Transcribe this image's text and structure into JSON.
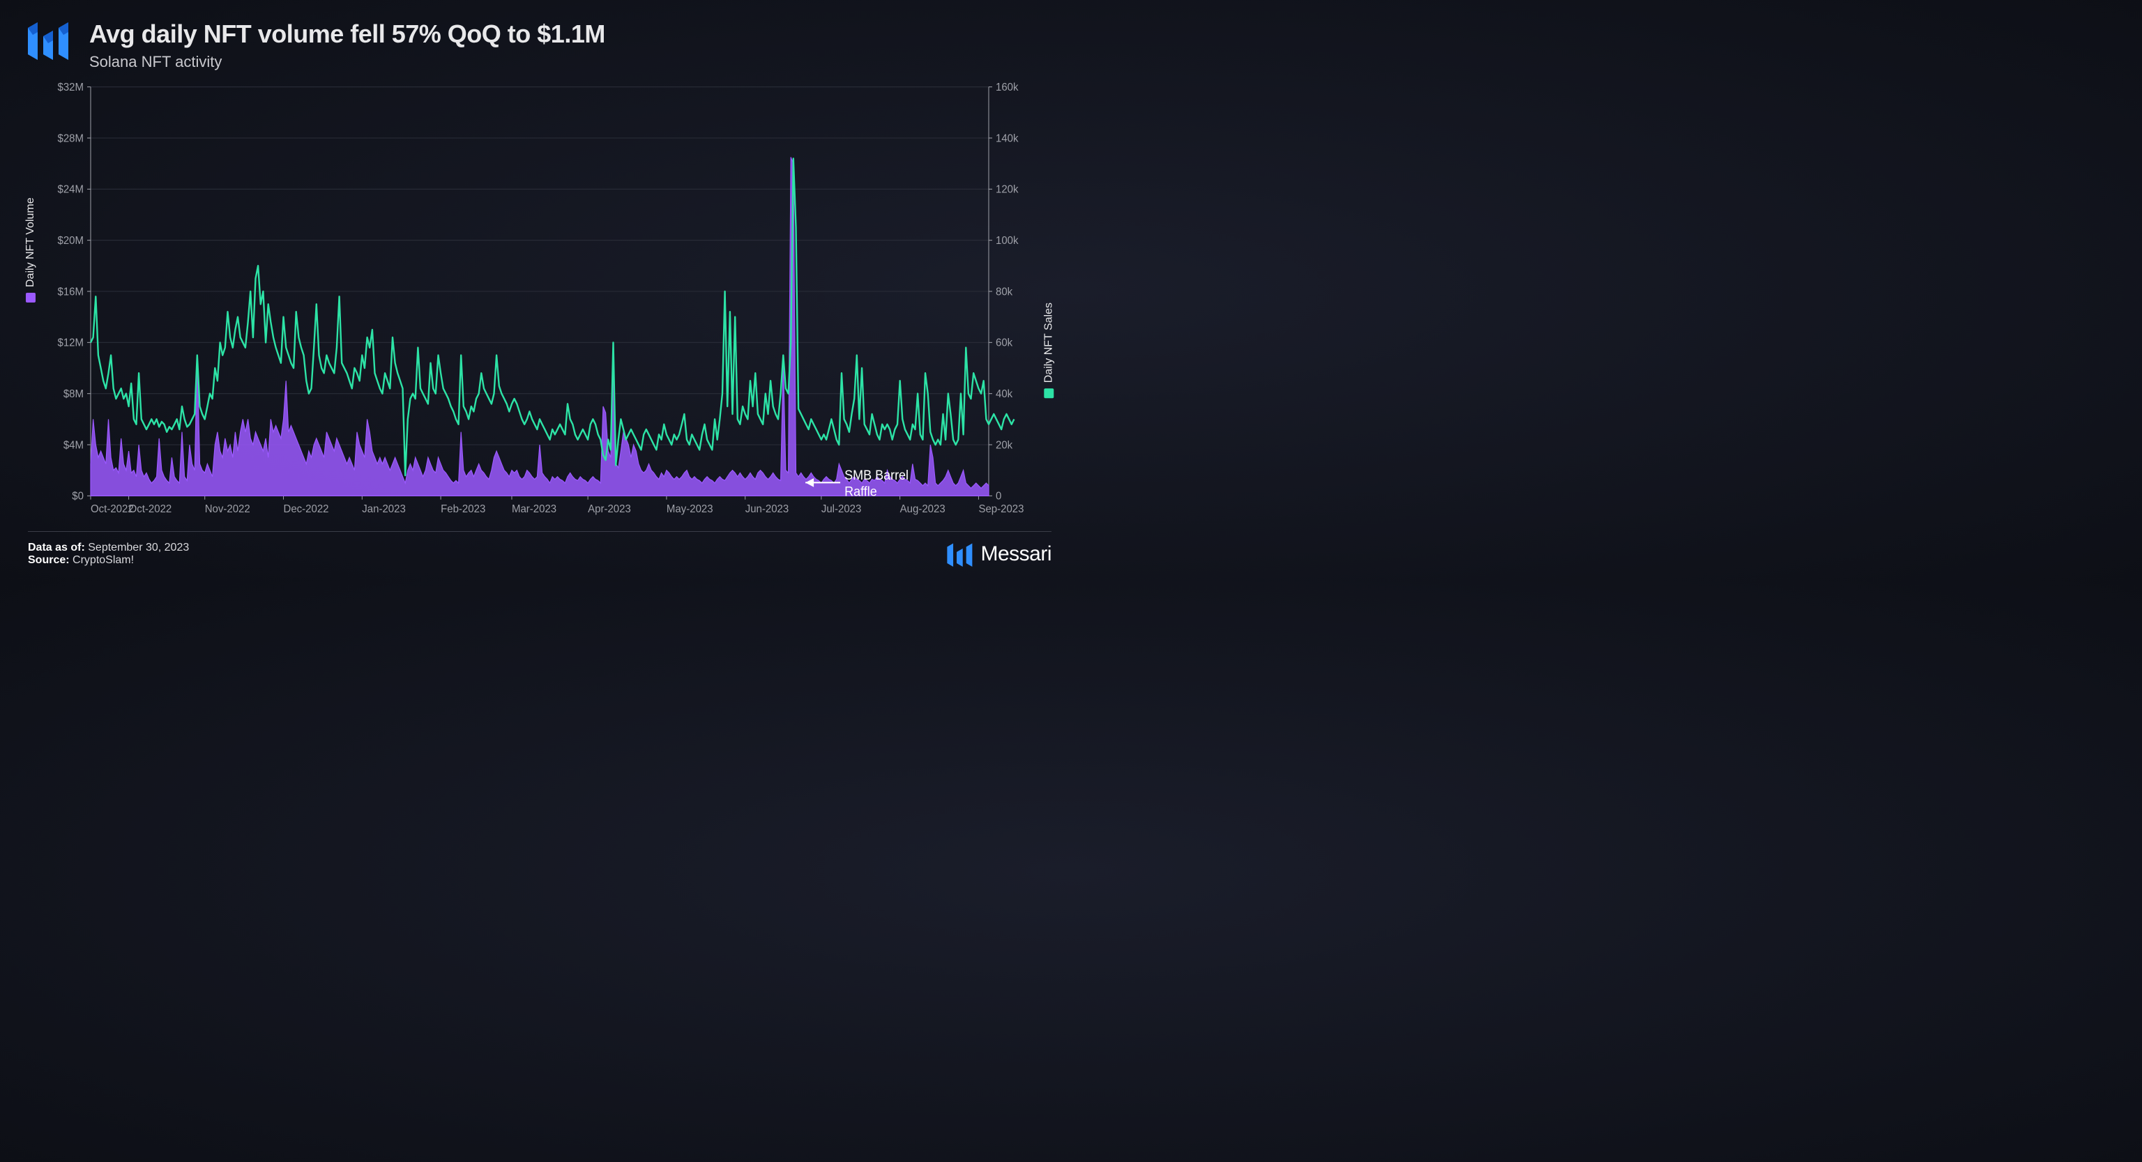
{
  "header": {
    "title": "Avg daily NFT volume fell 57% QoQ to $1.1M",
    "subtitle": "Solana NFT activity"
  },
  "footer": {
    "data_as_of_label": "Data as of:",
    "data_as_of_value": "September 30, 2023",
    "source_label": "Source:",
    "source_value": "CryptoSlam!",
    "brand_name": "Messari"
  },
  "annotation": {
    "text_line1": "SMB Barrel",
    "text_line2": "Raffle",
    "target_index": 279
  },
  "chart": {
    "type": "dual-axis-line-area",
    "background_color": "transparent",
    "grid_color": "#2a2d38",
    "axis_line_color": "#9ea0a8",
    "tick_color": "#9ea0a8",
    "tick_fontsize": 15,
    "label_fontsize": 16,
    "annotation_fontsize": 18,
    "annotation_color": "#ffffff",
    "left_axis": {
      "label": "Daily NFT Volume",
      "swatch_color": "#9b59ff",
      "ylim": [
        0,
        32
      ],
      "ytick_step": 4,
      "tick_prefix": "$",
      "tick_suffix": "M",
      "zero_label": "$0"
    },
    "right_axis": {
      "label": "Daily NFT Sales",
      "swatch_color": "#2de3a6",
      "ylim": [
        0,
        160
      ],
      "ytick_step": 20,
      "tick_suffix": "k",
      "zero_label": "0"
    },
    "x_axis": {
      "labels": [
        "Oct-2022",
        "Oct-2022",
        "Nov-2022",
        "Dec-2022",
        "Jan-2023",
        "Feb-2023",
        "Mar-2023",
        "Apr-2023",
        "May-2023",
        "Jun-2023",
        "Jul-2023",
        "Aug-2023",
        "Sep-2023"
      ],
      "positions": [
        0,
        15,
        45,
        76,
        107,
        138,
        166,
        196,
        227,
        258,
        288,
        319,
        350
      ]
    },
    "series_volume": {
      "color": "#9b59ff",
      "fill_opacity": 0.85,
      "line_width": 1.2,
      "values": [
        2.5,
        6.0,
        4.0,
        3.0,
        3.5,
        3.0,
        2.5,
        6.0,
        3.0,
        2.0,
        2.2,
        1.8,
        4.5,
        2.5,
        2.0,
        3.5,
        1.8,
        2.0,
        1.5,
        4.0,
        2.0,
        1.5,
        1.8,
        1.3,
        1.0,
        1.2,
        1.5,
        4.5,
        2.0,
        1.5,
        1.2,
        1.0,
        3.0,
        1.5,
        1.2,
        1.0,
        5.0,
        1.5,
        1.2,
        4.0,
        2.5,
        2.0,
        11.0,
        2.5,
        2.0,
        1.8,
        2.5,
        2.0,
        1.5,
        4.0,
        5.0,
        3.5,
        3.0,
        4.5,
        3.5,
        4.0,
        3.0,
        5.0,
        3.5,
        5.0,
        6.0,
        5.0,
        6.0,
        4.5,
        4.0,
        5.0,
        4.5,
        4.0,
        3.5,
        4.5,
        3.0,
        6.0,
        5.0,
        5.5,
        5.0,
        4.5,
        6.0,
        9.0,
        5.0,
        5.5,
        5.0,
        4.5,
        4.0,
        3.5,
        3.0,
        2.5,
        3.5,
        3.0,
        4.0,
        4.5,
        4.0,
        3.5,
        3.0,
        5.0,
        4.5,
        4.0,
        3.5,
        4.5,
        4.0,
        3.5,
        3.0,
        2.5,
        3.0,
        2.5,
        2.0,
        5.0,
        4.0,
        3.5,
        3.0,
        6.0,
        5.0,
        3.5,
        3.0,
        2.5,
        3.0,
        2.5,
        3.0,
        2.5,
        2.0,
        2.5,
        3.0,
        2.5,
        2.0,
        1.5,
        1.0,
        2.0,
        2.5,
        2.0,
        3.0,
        2.5,
        2.0,
        1.5,
        2.0,
        3.0,
        2.5,
        2.0,
        1.8,
        3.0,
        2.5,
        2.0,
        1.8,
        1.5,
        1.2,
        1.0,
        1.2,
        1.0,
        5.0,
        2.0,
        1.5,
        1.8,
        2.0,
        1.5,
        2.0,
        2.5,
        2.0,
        1.8,
        1.5,
        1.3,
        2.0,
        3.0,
        3.5,
        3.0,
        2.5,
        2.0,
        1.8,
        1.5,
        2.0,
        1.8,
        2.0,
        1.5,
        1.3,
        1.5,
        2.0,
        1.8,
        1.5,
        1.3,
        1.5,
        4.0,
        1.8,
        1.5,
        1.3,
        1.0,
        1.5,
        1.3,
        1.5,
        1.3,
        1.2,
        1.0,
        1.5,
        1.8,
        1.5,
        1.3,
        1.2,
        1.5,
        1.3,
        1.2,
        1.0,
        1.3,
        1.5,
        1.3,
        1.2,
        1.0,
        7.0,
        6.5,
        3.5,
        3.0,
        11.0,
        2.5,
        2.2,
        3.5,
        5.0,
        4.5,
        4.0,
        3.0,
        4.0,
        3.5,
        2.5,
        2.0,
        1.8,
        2.0,
        2.5,
        2.0,
        1.8,
        1.5,
        1.3,
        1.8,
        1.5,
        2.0,
        1.8,
        1.5,
        1.3,
        1.5,
        1.3,
        1.5,
        1.8,
        2.0,
        1.5,
        1.3,
        1.5,
        1.3,
        1.2,
        1.0,
        1.3,
        1.5,
        1.3,
        1.2,
        1.0,
        1.3,
        1.5,
        1.3,
        1.2,
        1.5,
        1.8,
        2.0,
        1.8,
        1.5,
        1.8,
        1.5,
        1.3,
        1.5,
        1.8,
        1.5,
        1.3,
        1.8,
        2.0,
        1.8,
        1.5,
        1.3,
        1.5,
        1.8,
        1.5,
        1.3,
        1.2,
        10.5,
        2.0,
        1.8,
        26.5,
        26.0,
        1.8,
        1.5,
        1.8,
        1.5,
        1.3,
        1.5,
        1.8,
        1.5,
        1.3,
        1.2,
        1.0,
        1.3,
        1.5,
        1.3,
        1.2,
        1.0,
        1.3,
        2.5,
        2.0,
        1.5,
        1.3,
        1.0,
        1.3,
        1.5,
        1.3,
        1.2,
        1.0,
        1.3,
        1.2,
        1.0,
        1.3,
        1.2,
        1.5,
        1.3,
        1.2,
        1.0,
        2.0,
        1.5,
        1.3,
        1.2,
        1.0,
        1.3,
        1.5,
        1.3,
        1.2,
        1.0,
        2.5,
        1.3,
        1.2,
        1.0,
        0.8,
        1.0,
        0.8,
        4.0,
        3.0,
        1.0,
        0.8,
        1.0,
        1.2,
        1.5,
        2.0,
        1.5,
        1.0,
        0.8,
        1.0,
        1.5,
        2.0,
        1.0,
        0.8,
        0.6,
        0.8,
        1.0,
        0.8,
        0.6,
        0.8,
        1.0,
        0.8
      ]
    },
    "series_sales": {
      "color": "#2de3a6",
      "line_width": 2.4,
      "values": [
        60,
        62,
        78,
        55,
        50,
        45,
        42,
        48,
        55,
        42,
        38,
        40,
        42,
        38,
        40,
        35,
        44,
        30,
        28,
        48,
        30,
        28,
        26,
        28,
        30,
        28,
        30,
        27,
        29,
        28,
        25,
        27,
        26,
        28,
        30,
        26,
        35,
        30,
        27,
        28,
        30,
        32,
        55,
        35,
        32,
        30,
        35,
        40,
        38,
        50,
        45,
        60,
        55,
        58,
        72,
        62,
        58,
        65,
        70,
        62,
        60,
        58,
        68,
        80,
        62,
        85,
        90,
        75,
        80,
        60,
        75,
        68,
        62,
        58,
        55,
        52,
        70,
        58,
        55,
        52,
        50,
        72,
        62,
        58,
        55,
        45,
        40,
        42,
        58,
        75,
        55,
        50,
        48,
        55,
        52,
        50,
        48,
        58,
        78,
        52,
        50,
        48,
        45,
        42,
        50,
        48,
        45,
        55,
        50,
        62,
        58,
        65,
        48,
        45,
        42,
        40,
        48,
        45,
        42,
        62,
        52,
        48,
        45,
        42,
        8,
        30,
        38,
        40,
        38,
        58,
        42,
        40,
        38,
        36,
        52,
        42,
        40,
        55,
        48,
        42,
        40,
        38,
        35,
        33,
        30,
        28,
        55,
        35,
        33,
        30,
        35,
        33,
        38,
        40,
        48,
        42,
        40,
        38,
        36,
        40,
        55,
        43,
        40,
        38,
        36,
        33,
        36,
        38,
        36,
        33,
        30,
        28,
        30,
        33,
        30,
        28,
        26,
        30,
        28,
        26,
        24,
        22,
        26,
        24,
        26,
        28,
        26,
        24,
        36,
        30,
        28,
        24,
        22,
        24,
        26,
        24,
        22,
        28,
        30,
        28,
        24,
        22,
        16,
        14,
        22,
        18,
        60,
        12,
        22,
        30,
        26,
        22,
        24,
        26,
        24,
        22,
        20,
        18,
        24,
        26,
        24,
        22,
        20,
        18,
        24,
        22,
        28,
        24,
        22,
        20,
        24,
        22,
        24,
        28,
        32,
        22,
        20,
        24,
        22,
        20,
        18,
        24,
        28,
        22,
        20,
        18,
        30,
        22,
        30,
        40,
        80,
        35,
        72,
        32,
        70,
        30,
        28,
        35,
        32,
        30,
        45,
        35,
        48,
        32,
        30,
        28,
        40,
        32,
        45,
        35,
        32,
        30,
        40,
        55,
        42,
        40,
        60,
        132,
        105,
        34,
        32,
        30,
        28,
        26,
        30,
        28,
        26,
        24,
        22,
        24,
        22,
        26,
        30,
        26,
        22,
        20,
        48,
        30,
        28,
        25,
        32,
        38,
        55,
        30,
        50,
        28,
        26,
        24,
        32,
        28,
        24,
        22,
        28,
        26,
        28,
        26,
        22,
        26,
        28,
        45,
        30,
        26,
        24,
        22,
        28,
        26,
        40,
        24,
        22,
        48,
        40,
        25,
        22,
        20,
        22,
        20,
        32,
        22,
        40,
        32,
        22,
        20,
        22,
        40,
        24,
        58,
        40,
        38,
        48,
        45,
        42,
        40,
        45,
        30,
        28,
        30,
        32,
        30,
        28,
        26,
        30,
        32,
        30,
        28,
        30
      ]
    }
  }
}
